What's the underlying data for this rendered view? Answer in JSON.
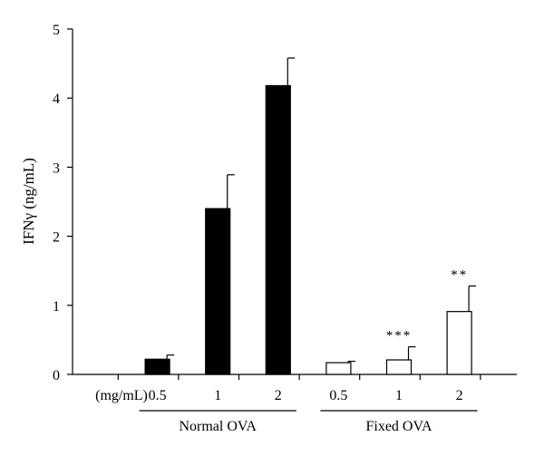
{
  "chart_data": {
    "type": "bar",
    "ylabel": "IFNγ (ng/mL)",
    "ylim": [
      0,
      5
    ],
    "yticks": [
      0,
      1,
      2,
      3,
      4,
      5
    ],
    "unit_label": "(mg/mL)",
    "groups": [
      {
        "name": "Normal OVA",
        "fill": "#000000"
      },
      {
        "name": "Fixed OVA",
        "fill": "#ffffff"
      }
    ],
    "bars": [
      {
        "group": "",
        "category": "",
        "value": 0,
        "error": 0,
        "annotation": ""
      },
      {
        "group": "Normal OVA",
        "category": "0.5",
        "value": 0.22,
        "error": 0.06,
        "annotation": ""
      },
      {
        "group": "Normal OVA",
        "category": "1",
        "value": 2.4,
        "error": 0.49,
        "annotation": ""
      },
      {
        "group": "Normal OVA",
        "category": "2",
        "value": 4.18,
        "error": 0.4,
        "annotation": ""
      },
      {
        "group": "Fixed OVA",
        "category": "0.5",
        "value": 0.17,
        "error": 0.02,
        "annotation": ""
      },
      {
        "group": "Fixed OVA",
        "category": "1",
        "value": 0.21,
        "error": 0.19,
        "annotation": "***"
      },
      {
        "group": "Fixed OVA",
        "category": "2",
        "value": 0.91,
        "error": 0.37,
        "annotation": "**"
      }
    ]
  }
}
